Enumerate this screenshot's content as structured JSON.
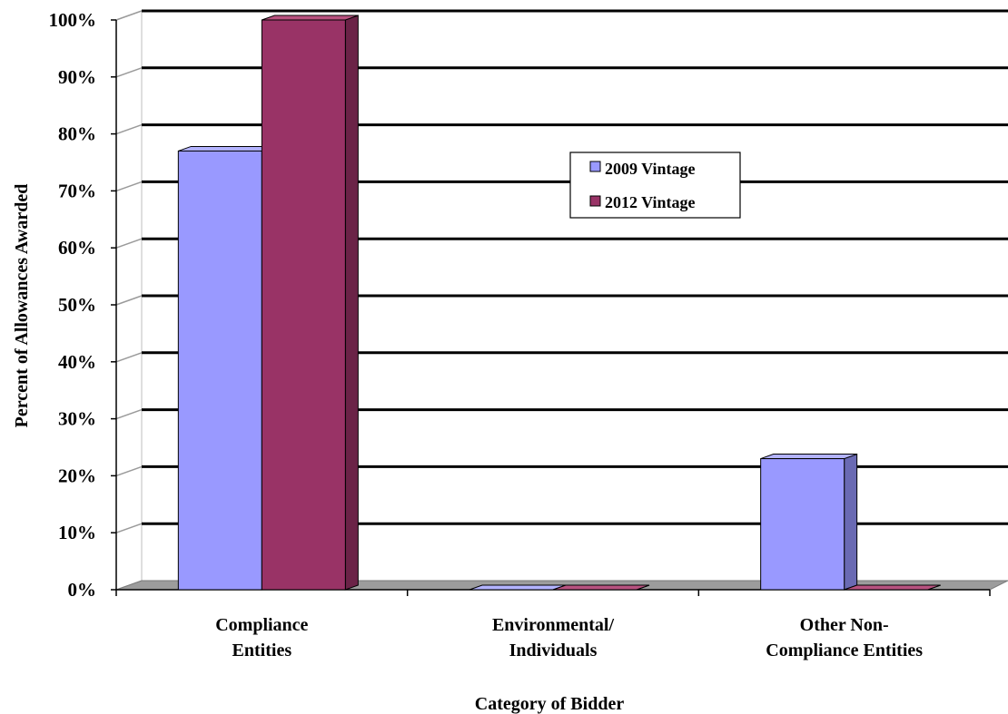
{
  "chart_data": {
    "type": "bar",
    "xlabel": "Category of Bidder",
    "ylabel": "Percent of Allowances Awarded",
    "categories": [
      [
        "Compliance",
        "Entities"
      ],
      [
        "Environmental/",
        "Individuals"
      ],
      [
        "Other Non-",
        "Compliance Entities"
      ]
    ],
    "series": [
      {
        "name": "2009 Vintage",
        "values": [
          77,
          0,
          23
        ],
        "color": "#9999ff",
        "side_color": "#6a6ab3",
        "top_color": "#b3b3ff"
      },
      {
        "name": "2012 Vintage",
        "values": [
          100,
          0,
          0
        ],
        "color": "#993366",
        "side_color": "#6b2347",
        "top_color": "#b8527f"
      }
    ],
    "ylim": [
      0,
      100
    ],
    "yticks": [
      "0%",
      "10%",
      "20%",
      "30%",
      "40%",
      "50%",
      "60%",
      "70%",
      "80%",
      "90%",
      "100%"
    ],
    "grid": true,
    "legend_position": "center-right"
  }
}
